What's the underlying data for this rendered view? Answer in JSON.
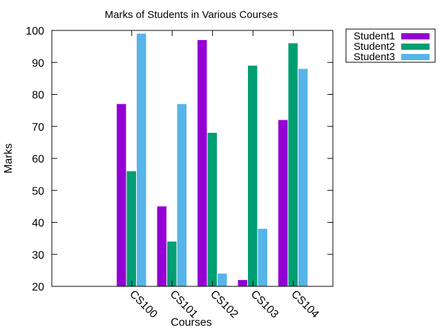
{
  "chart_data": {
    "type": "bar",
    "title": "Marks of Students in Various Courses",
    "xlabel": "Courses",
    "ylabel": "Marks",
    "ylim": [
      20,
      100
    ],
    "yticks": [
      20,
      30,
      40,
      50,
      60,
      70,
      80,
      90,
      100
    ],
    "categories": [
      "CS100",
      "CS101",
      "CS102",
      "CS103",
      "CS104"
    ],
    "series": [
      {
        "name": "Student1",
        "color": "#9400d3",
        "values": [
          77,
          45,
          97,
          22,
          72
        ]
      },
      {
        "name": "Student2",
        "color": "#009e73",
        "values": [
          56,
          34,
          68,
          89,
          96
        ]
      },
      {
        "name": "Student3",
        "color": "#56b4e9",
        "values": [
          99,
          77,
          24,
          38,
          88
        ]
      }
    ],
    "grid": false,
    "legend_position": "outside-top-right",
    "xtick_rotation": "rotated-downward"
  }
}
